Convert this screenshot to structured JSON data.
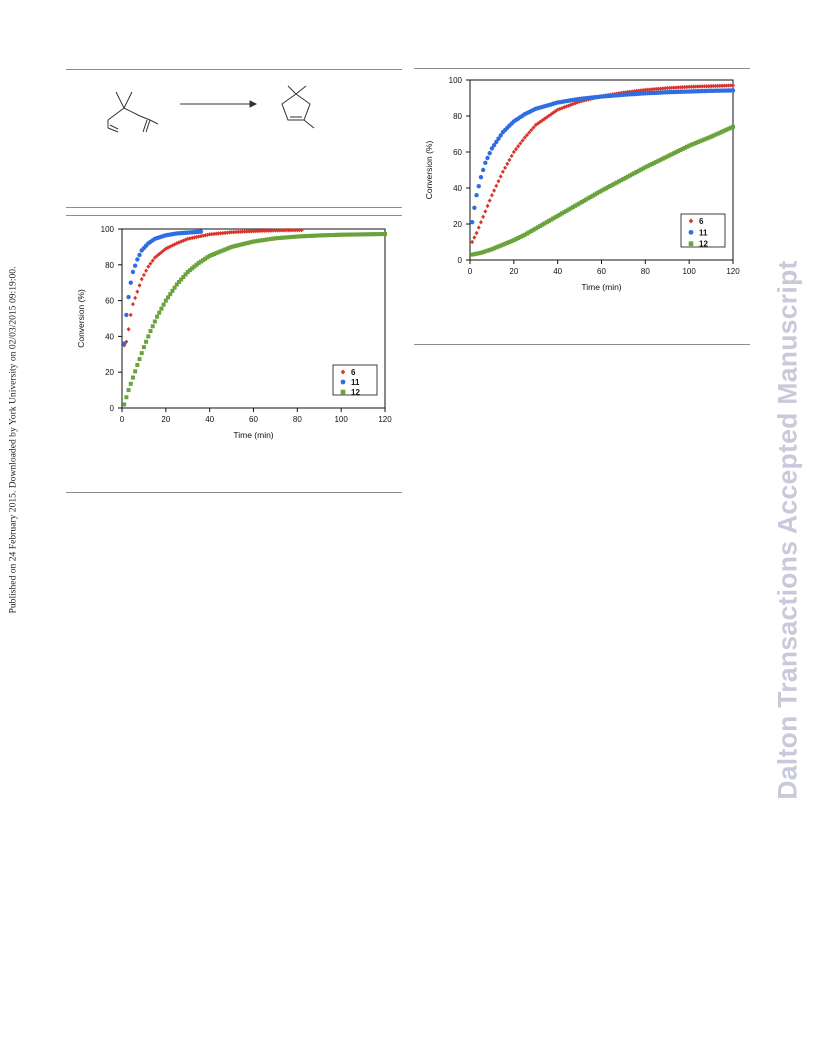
{
  "side_note": "Published on 24 February 2015. Downloaded by York University on 02/03/2015 09:19:00.",
  "watermark": "Dalton Transactions Accepted Manuscript",
  "colors": {
    "series_6": "#d9362b",
    "series_11": "#2f6ee0",
    "series_12": "#6aa23c",
    "rule": "#8c8c8c",
    "watermark": "#c9c9dc"
  },
  "chart_data": [
    {
      "type": "scatter",
      "xlabel": "Time (min)",
      "ylabel": "Conversion (%)",
      "xlim": [
        0,
        120
      ],
      "ylim": [
        0,
        100
      ],
      "xticks": [
        "0",
        "20",
        "40",
        "60",
        "80",
        "100",
        "120"
      ],
      "yticks": [
        "0",
        "20",
        "40",
        "60",
        "80",
        "100"
      ],
      "legend_position": "bottom-right",
      "grid": false,
      "series": [
        {
          "name": "6",
          "marker": "diamond",
          "x_end": 82,
          "points": [
            [
              1,
              35
            ],
            [
              2,
              37
            ],
            [
              3,
              44
            ],
            [
              4,
              52
            ],
            [
              5,
              58
            ],
            [
              7,
              65
            ],
            [
              9,
              72
            ],
            [
              12,
              79
            ],
            [
              15,
              84
            ],
            [
              20,
              89
            ],
            [
              25,
              92
            ],
            [
              30,
              94.5
            ],
            [
              40,
              97
            ],
            [
              50,
              98.2
            ],
            [
              60,
              98.8
            ],
            [
              70,
              99.2
            ],
            [
              82,
              99.4
            ]
          ]
        },
        {
          "name": "11",
          "marker": "circle",
          "x_end": 36,
          "points": [
            [
              1,
              36
            ],
            [
              2,
              52
            ],
            [
              3,
              62
            ],
            [
              4,
              70
            ],
            [
              5,
              76
            ],
            [
              7,
              83
            ],
            [
              9,
              88
            ],
            [
              12,
              92
            ],
            [
              15,
              94.5
            ],
            [
              20,
              96.5
            ],
            [
              25,
              97.5
            ],
            [
              30,
              98
            ],
            [
              36,
              98.5
            ]
          ]
        },
        {
          "name": "12",
          "marker": "square",
          "x_end": 120,
          "points": [
            [
              1,
              2
            ],
            [
              2,
              6
            ],
            [
              3,
              10
            ],
            [
              5,
              17
            ],
            [
              7,
              24
            ],
            [
              10,
              34
            ],
            [
              13,
              43
            ],
            [
              16,
              51
            ],
            [
              20,
              60
            ],
            [
              25,
              69
            ],
            [
              30,
              76
            ],
            [
              35,
              81
            ],
            [
              40,
              85
            ],
            [
              50,
              90
            ],
            [
              60,
              93
            ],
            [
              70,
              94.8
            ],
            [
              80,
              95.8
            ],
            [
              90,
              96.4
            ],
            [
              100,
              96.8
            ],
            [
              110,
              97
            ],
            [
              120,
              97.2
            ]
          ]
        }
      ]
    },
    {
      "type": "scatter",
      "xlabel": "Time (min)",
      "ylabel": "Conversion (%)",
      "xlim": [
        0,
        120
      ],
      "ylim": [
        0,
        100
      ],
      "xticks": [
        "0",
        "20",
        "40",
        "60",
        "80",
        "100",
        "120"
      ],
      "yticks": [
        "0",
        "20",
        "40",
        "60",
        "80",
        "100"
      ],
      "legend_position": "bottom-right",
      "grid": false,
      "series": [
        {
          "name": "6",
          "marker": "diamond",
          "x_end": 120,
          "points": [
            [
              1,
              10
            ],
            [
              3,
              15
            ],
            [
              5,
              21
            ],
            [
              8,
              30
            ],
            [
              10,
              36
            ],
            [
              15,
              49
            ],
            [
              20,
              60
            ],
            [
              25,
              68
            ],
            [
              30,
              75
            ],
            [
              40,
              83.5
            ],
            [
              50,
              88
            ],
            [
              60,
              91
            ],
            [
              70,
              93
            ],
            [
              80,
              94.5
            ],
            [
              90,
              95.5
            ],
            [
              100,
              96.2
            ],
            [
              110,
              96.6
            ],
            [
              120,
              97
            ]
          ]
        },
        {
          "name": "11",
          "marker": "circle",
          "x_end": 120,
          "points": [
            [
              1,
              21
            ],
            [
              2,
              29
            ],
            [
              3,
              36
            ],
            [
              5,
              46
            ],
            [
              7,
              54
            ],
            [
              10,
              62
            ],
            [
              15,
              71
            ],
            [
              20,
              77
            ],
            [
              25,
              81
            ],
            [
              30,
              84
            ],
            [
              40,
              87.5
            ],
            [
              50,
              89.5
            ],
            [
              60,
              90.8
            ],
            [
              70,
              91.8
            ],
            [
              80,
              92.6
            ],
            [
              90,
              93.2
            ],
            [
              100,
              93.6
            ],
            [
              110,
              94
            ],
            [
              120,
              94.2
            ]
          ]
        },
        {
          "name": "12",
          "marker": "square",
          "x_end": 120,
          "points": [
            [
              1,
              3
            ],
            [
              5,
              4
            ],
            [
              10,
              6
            ],
            [
              15,
              8.5
            ],
            [
              20,
              11
            ],
            [
              25,
              14
            ],
            [
              30,
              17.5
            ],
            [
              40,
              24.5
            ],
            [
              50,
              31.5
            ],
            [
              60,
              38.5
            ],
            [
              70,
              45
            ],
            [
              80,
              51.5
            ],
            [
              90,
              57.5
            ],
            [
              100,
              63.5
            ],
            [
              110,
              68.5
            ],
            [
              120,
              74
            ]
          ]
        }
      ]
    }
  ]
}
